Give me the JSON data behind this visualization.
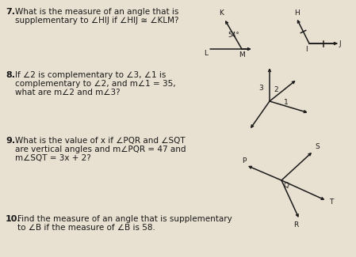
{
  "bg_color": "#e8e0d0",
  "text_color": "#1a1a1a",
  "fs_num": 8.0,
  "fs_body": 7.5,
  "q7_num": "7.",
  "q7_text1": "What is the measure of an angle that is",
  "q7_text2": "supplementary to ∠HIJ if ∠HIJ ≅ ∠KLM?",
  "q8_num": "8.",
  "q8_text1": "If ∠2 is complementary to ∠3, ∠1 is",
  "q8_text2": "complementary to ∠2, and m∠1 = 35,",
  "q8_text3": "what are m∠2 and m∠3?",
  "q9_num": "9.",
  "q9_text1": "What is the value of x if ∠PQR and ∠SQT",
  "q9_text2": "are vertical angles and m∠PQR = 47 and",
  "q9_text3": "m∠SQT = 3x + 2?",
  "q10_num": "10.",
  "q10_text1": "Find the measure of an angle that is supplementary",
  "q10_text2": "to ∠B if the measure of ∠B is 58.",
  "diag7_54_label": "54°",
  "diag7_L": "L",
  "diag7_K": "K",
  "diag7_M": "M",
  "diag7_H": "H",
  "diag7_I": "I",
  "diag7_J": "J",
  "diag8_labels": [
    "3",
    "2",
    "1"
  ],
  "diag9_P": "P",
  "diag9_Q": "Q",
  "diag9_R": "R",
  "diag9_S": "S",
  "diag9_T": "T"
}
